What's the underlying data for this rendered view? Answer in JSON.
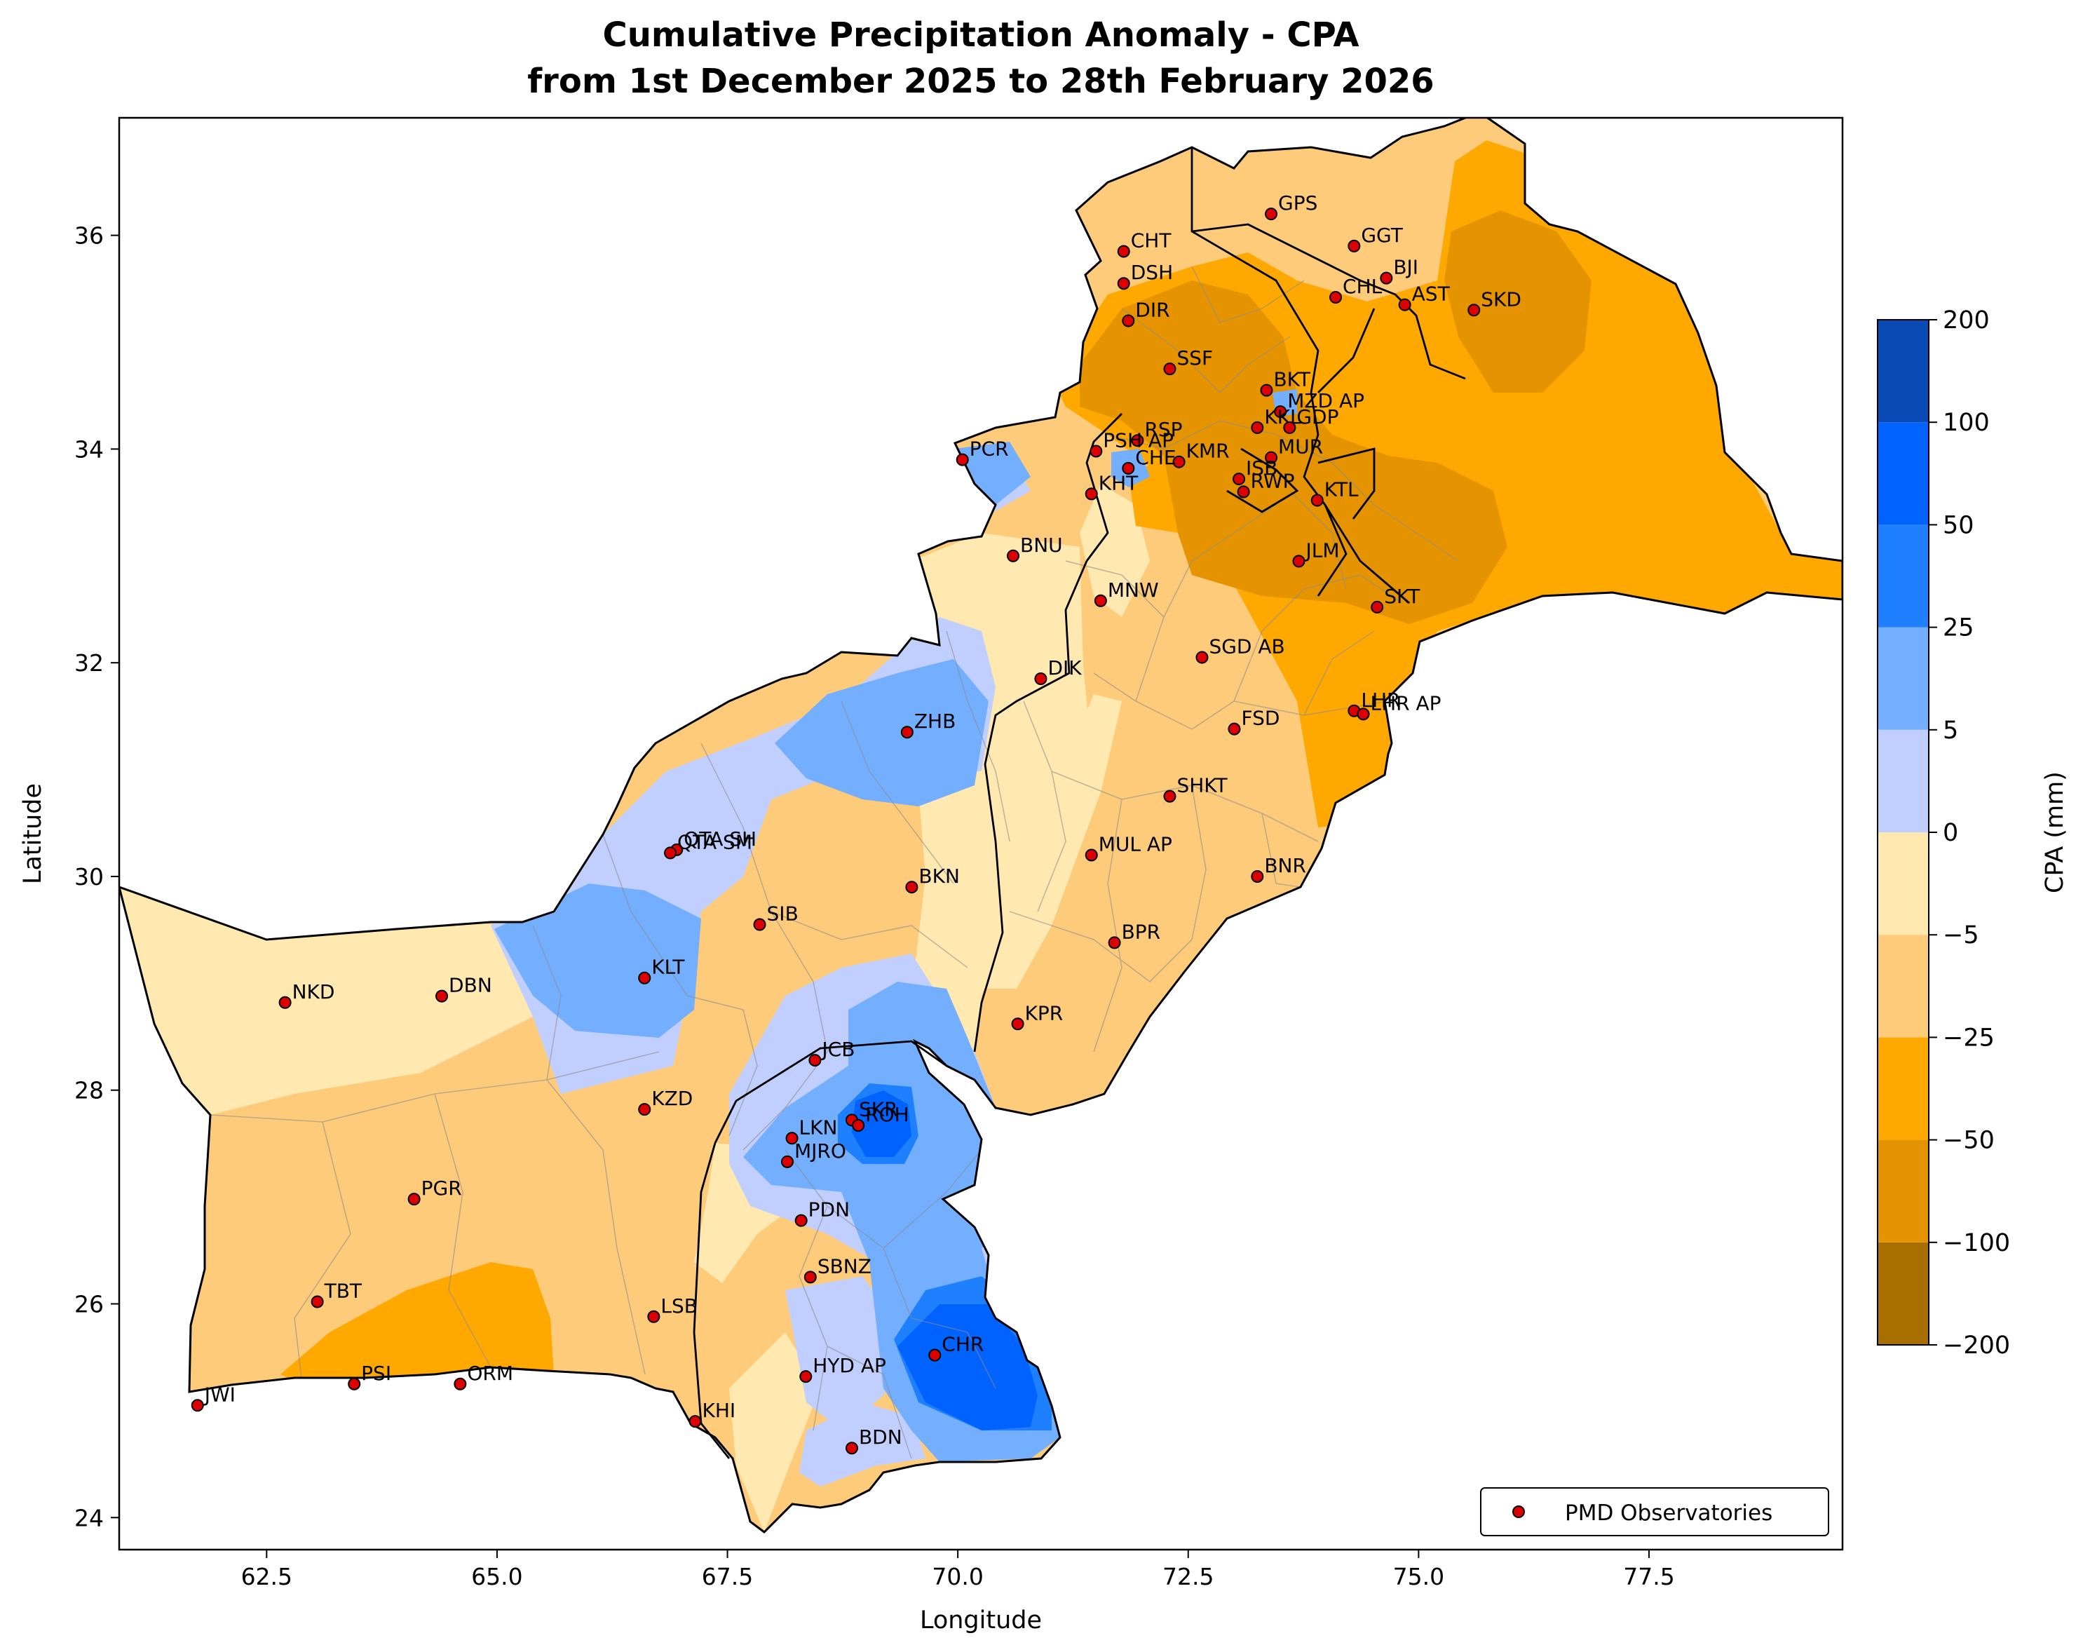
{
  "title": {
    "line1": "Cumulative Precipitation Anomaly - CPA",
    "line2": "from 1st December 2025 to 28th February 2026"
  },
  "axes": {
    "xlabel": "Longitude",
    "ylabel": "Latitude",
    "xlim": [
      60.9,
      79.6
    ],
    "ylim": [
      23.7,
      37.1
    ],
    "xticks": [
      "62.5",
      "65.0",
      "67.5",
      "70.0",
      "72.5",
      "75.0",
      "77.5"
    ],
    "xtick_values": [
      62.5,
      65.0,
      67.5,
      70.0,
      72.5,
      75.0,
      77.5
    ],
    "yticks": [
      "24",
      "26",
      "28",
      "30",
      "32",
      "34",
      "36"
    ],
    "ytick_values": [
      24,
      26,
      28,
      30,
      32,
      34,
      36
    ]
  },
  "colorbar": {
    "label": "CPA (mm)",
    "levels": [
      "−200",
      "−100",
      "−50",
      "−25",
      "−5",
      "0",
      "5",
      "25",
      "50",
      "100",
      "200"
    ],
    "colors": [
      "#a86f00",
      "#e59400",
      "#ffa800",
      "#fecb7a",
      "#ffe9b0",
      "#c0cfff",
      "#73aeff",
      "#1e80ff",
      "#0062ff",
      "#0a4ab5"
    ]
  },
  "legend": {
    "label": "PMD Observatories",
    "position": "lower-right",
    "marker_color": "#dd0000"
  },
  "chart_data": {
    "type": "map",
    "stations": [
      {
        "name": "GPS",
        "lon": 73.4,
        "lat": 36.2
      },
      {
        "name": "CHT",
        "lon": 71.8,
        "lat": 35.85
      },
      {
        "name": "GGT",
        "lon": 74.3,
        "lat": 35.9
      },
      {
        "name": "BJI",
        "lon": 74.65,
        "lat": 35.6
      },
      {
        "name": "DSH",
        "lon": 71.8,
        "lat": 35.55
      },
      {
        "name": "CHL",
        "lon": 74.1,
        "lat": 35.42
      },
      {
        "name": "AST",
        "lon": 74.85,
        "lat": 35.35
      },
      {
        "name": "SKD",
        "lon": 75.6,
        "lat": 35.3
      },
      {
        "name": "DIR",
        "lon": 71.85,
        "lat": 35.2
      },
      {
        "name": "SSF",
        "lon": 72.3,
        "lat": 34.75
      },
      {
        "name": "BKT",
        "lon": 73.35,
        "lat": 34.55
      },
      {
        "name": "MZD AP",
        "lon": 73.5,
        "lat": 34.35
      },
      {
        "name": "RSP",
        "lon": 71.95,
        "lat": 34.08
      },
      {
        "name": "KKL",
        "lon": 73.25,
        "lat": 34.2
      },
      {
        "name": "GDP",
        "lon": 73.6,
        "lat": 34.2
      },
      {
        "name": "PCR",
        "lon": 70.05,
        "lat": 33.9
      },
      {
        "name": "PSH AP",
        "lon": 71.5,
        "lat": 33.98
      },
      {
        "name": "KMR",
        "lon": 72.4,
        "lat": 33.88
      },
      {
        "name": "MUR",
        "lon": 73.4,
        "lat": 33.92
      },
      {
        "name": "CHE",
        "lon": 71.85,
        "lat": 33.82
      },
      {
        "name": "ISB",
        "lon": 73.05,
        "lat": 33.72
      },
      {
        "name": "RWP",
        "lon": 73.1,
        "lat": 33.6
      },
      {
        "name": "KHT",
        "lon": 71.45,
        "lat": 33.58
      },
      {
        "name": "KTL",
        "lon": 73.9,
        "lat": 33.52
      },
      {
        "name": "BNU",
        "lon": 70.6,
        "lat": 33.0
      },
      {
        "name": "JLM",
        "lon": 73.7,
        "lat": 32.95
      },
      {
        "name": "MNW",
        "lon": 71.55,
        "lat": 32.58
      },
      {
        "name": "SKT",
        "lon": 74.55,
        "lat": 32.52
      },
      {
        "name": "SGD AB",
        "lon": 72.65,
        "lat": 32.05
      },
      {
        "name": "DIK",
        "lon": 70.9,
        "lat": 31.85
      },
      {
        "name": "LHR",
        "lon": 74.3,
        "lat": 31.55
      },
      {
        "name": "LHR AP",
        "lon": 74.4,
        "lat": 31.52
      },
      {
        "name": "FSD",
        "lon": 73.0,
        "lat": 31.38
      },
      {
        "name": "ZHB",
        "lon": 69.45,
        "lat": 31.35
      },
      {
        "name": "SHKT",
        "lon": 72.3,
        "lat": 30.75
      },
      {
        "name": "QTA SH",
        "lon": 66.95,
        "lat": 30.25
      },
      {
        "name": "QTA SM",
        "lon": 66.88,
        "lat": 30.22
      },
      {
        "name": "MUL AP",
        "lon": 71.45,
        "lat": 30.2
      },
      {
        "name": "BNR",
        "lon": 73.25,
        "lat": 30.0
      },
      {
        "name": "BKN",
        "lon": 69.5,
        "lat": 29.9
      },
      {
        "name": "SIB",
        "lon": 67.85,
        "lat": 29.55
      },
      {
        "name": "BPR",
        "lon": 71.7,
        "lat": 29.38
      },
      {
        "name": "KLT",
        "lon": 66.6,
        "lat": 29.05
      },
      {
        "name": "NKD",
        "lon": 62.7,
        "lat": 28.82
      },
      {
        "name": "DBN",
        "lon": 64.4,
        "lat": 28.88
      },
      {
        "name": "KPR",
        "lon": 70.65,
        "lat": 28.62
      },
      {
        "name": "JCB",
        "lon": 68.45,
        "lat": 28.28
      },
      {
        "name": "KZD",
        "lon": 66.6,
        "lat": 27.82
      },
      {
        "name": "SKR",
        "lon": 68.85,
        "lat": 27.72
      },
      {
        "name": "ROH",
        "lon": 68.92,
        "lat": 27.67
      },
      {
        "name": "LKN",
        "lon": 68.2,
        "lat": 27.55
      },
      {
        "name": "MJRO",
        "lon": 68.15,
        "lat": 27.33
      },
      {
        "name": "PGR",
        "lon": 64.1,
        "lat": 26.98
      },
      {
        "name": "PDN",
        "lon": 68.3,
        "lat": 26.78
      },
      {
        "name": "SBNZ",
        "lon": 68.4,
        "lat": 26.25
      },
      {
        "name": "TBT",
        "lon": 63.05,
        "lat": 26.02
      },
      {
        "name": "LSB",
        "lon": 66.7,
        "lat": 25.88
      },
      {
        "name": "CHR",
        "lon": 69.75,
        "lat": 25.52
      },
      {
        "name": "HYD AP",
        "lon": 68.35,
        "lat": 25.32
      },
      {
        "name": "PSI",
        "lon": 63.45,
        "lat": 25.25
      },
      {
        "name": "ORM",
        "lon": 64.6,
        "lat": 25.25
      },
      {
        "name": "JWI",
        "lon": 61.75,
        "lat": 25.05
      },
      {
        "name": "KHI",
        "lon": 67.15,
        "lat": 24.9
      },
      {
        "name": "BDN",
        "lon": 68.85,
        "lat": 24.65
      }
    ]
  }
}
